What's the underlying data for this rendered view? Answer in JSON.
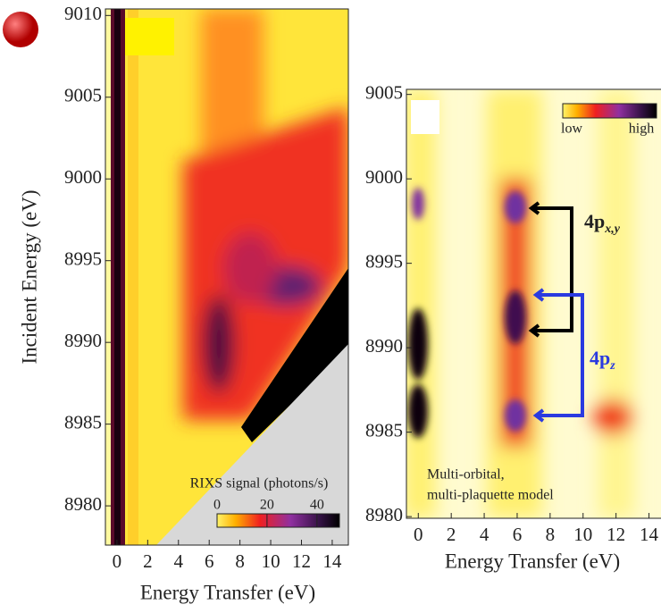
{
  "chart_data": [
    {
      "type": "heatmap",
      "ylabel": "Incident Energy (eV)",
      "xlabel": "Energy Transfer (eV)",
      "xlim": [
        -0.75,
        15.05
      ],
      "ylim": [
        8977.6,
        9010.4
      ],
      "xticks": [
        0,
        2,
        4,
        6,
        8,
        10,
        12,
        14
      ],
      "yticks": [
        8980,
        8985,
        8990,
        8995,
        9000,
        9005,
        9010
      ],
      "colorbar": {
        "label": "RIXS signal (photons/s)",
        "lim": [
          0,
          49
        ],
        "ticks": [
          0,
          20,
          40
        ]
      }
    },
    {
      "type": "heatmap",
      "xlabel": "Energy Transfer (eV)",
      "xlim": [
        -0.72,
        15.0
      ],
      "ylim": [
        8979.9,
        9005.3
      ],
      "xticks": [
        0,
        2,
        4,
        6,
        8,
        10,
        12,
        14
      ],
      "yticks": [
        8980,
        8985,
        8990,
        8995,
        9000,
        9005
      ],
      "colorbar": {
        "low": "low",
        "high": "high"
      },
      "annotations": {
        "model": [
          "Multi-orbital,",
          "multi-plaquette model"
        ],
        "pxy": {
          "main": "4p",
          "sub": "x,y"
        },
        "pz": {
          "main": "4p",
          "sub": "z"
        }
      }
    }
  ]
}
